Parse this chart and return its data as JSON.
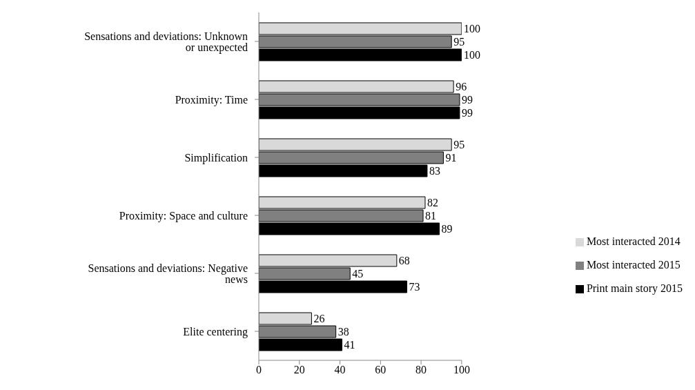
{
  "chart_data": {
    "type": "bar",
    "orientation": "horizontal",
    "categories": [
      "Sensations and deviations: Unknown or unexpected",
      "Proximity: Time",
      "Simplification",
      "Proximity: Space and culture",
      "Sensations and deviations: Negative news",
      "Elite centering"
    ],
    "series": [
      {
        "name": "Most interacted 2014",
        "color": "#d9d9d9",
        "values": [
          100,
          96,
          95,
          82,
          68,
          26
        ]
      },
      {
        "name": "Most interacted 2015",
        "color": "#808080",
        "values": [
          95,
          99,
          91,
          81,
          45,
          38
        ]
      },
      {
        "name": "Print main story 2015",
        "color": "#000000",
        "values": [
          100,
          99,
          83,
          89,
          73,
          41
        ]
      }
    ],
    "xlim": [
      0,
      100
    ],
    "xticks": [
      0,
      20,
      40,
      60,
      80,
      100
    ],
    "grid": false,
    "legend": "right",
    "data_labels": true
  }
}
